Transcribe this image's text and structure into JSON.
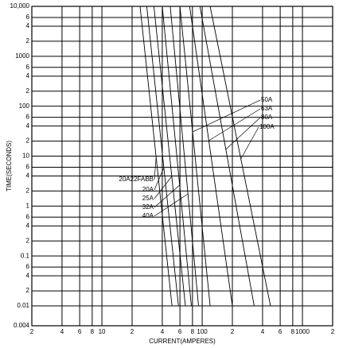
{
  "chart_data": {
    "type": "line",
    "log_x": true,
    "log_y": true,
    "grid": true,
    "x_label": "CURRENT(AMPERES)",
    "y_label": "TIME(SECONDS)",
    "xlim": [
      2,
      2000
    ],
    "xticks": [
      2,
      4,
      6,
      8,
      10,
      {
        "value": 20,
        "label": "2"
      },
      {
        "value": 40,
        "label": "4"
      },
      {
        "value": 60,
        "label": "6"
      },
      {
        "value": 80,
        "label": "8"
      },
      100,
      {
        "value": 200,
        "label": "2"
      },
      {
        "value": 400,
        "label": "4"
      },
      {
        "value": 600,
        "label": "6"
      },
      {
        "value": 800,
        "label": "8"
      },
      1000,
      {
        "value": 2000,
        "label": "2"
      }
    ],
    "ylim": [
      0.004,
      10000
    ],
    "yticks": [
      0.004,
      0.01,
      {
        "value": 0.02,
        "label": "2"
      },
      {
        "value": 0.04,
        "label": "4"
      },
      {
        "value": 0.06,
        "label": "6"
      },
      0.1,
      {
        "value": 0.2,
        "label": "2"
      },
      {
        "value": 0.4,
        "label": "4"
      },
      {
        "value": 0.6,
        "label": "6"
      },
      1,
      {
        "value": 2,
        "label": "2"
      },
      4,
      6,
      10,
      {
        "value": 20,
        "label": "2"
      },
      {
        "value": 40,
        "label": "4"
      },
      {
        "value": 60,
        "label": "6"
      },
      100,
      {
        "value": 200,
        "label": "2"
      },
      {
        "value": 400,
        "label": "4"
      },
      {
        "value": 600,
        "label": "6"
      },
      1000,
      {
        "value": 2000,
        "label": "2"
      },
      {
        "value": 4000,
        "label": "4"
      },
      {
        "value": 6000,
        "label": "6"
      },
      {
        "value": 10000,
        "label": "10,000"
      }
    ],
    "series": [
      {
        "name": "20A22FABB",
        "color": "#000000",
        "x": [
          24,
          50
        ],
        "values": [
          10000,
          0.01
        ]
      },
      {
        "name": "20A",
        "color": "#000000",
        "x": [
          28,
          58
        ],
        "values": [
          10000,
          0.01
        ]
      },
      {
        "name": "25A",
        "color": "#000000",
        "x": [
          33,
          68
        ],
        "values": [
          10000,
          0.01
        ]
      },
      {
        "name": "32A",
        "color": "#000000",
        "x": [
          40,
          78
        ],
        "values": [
          10000,
          0.01
        ]
      },
      {
        "name": "40A",
        "color": "#000000",
        "x": [
          48,
          92
        ],
        "values": [
          10000,
          0.01
        ]
      },
      {
        "name": "50A",
        "color": "#000000",
        "x": [
          60,
          120
        ],
        "values": [
          10000,
          0.01
        ]
      },
      {
        "name": "63A",
        "color": "#000000",
        "x": [
          75,
          200
        ],
        "values": [
          10000,
          0.01
        ]
      },
      {
        "name": "80A",
        "color": "#000000",
        "x": [
          95,
          330
        ],
        "values": [
          10000,
          0.01
        ]
      },
      {
        "name": "100A",
        "color": "#000000",
        "x": [
          120,
          480
        ],
        "values": [
          10000,
          0.01
        ]
      }
    ]
  }
}
